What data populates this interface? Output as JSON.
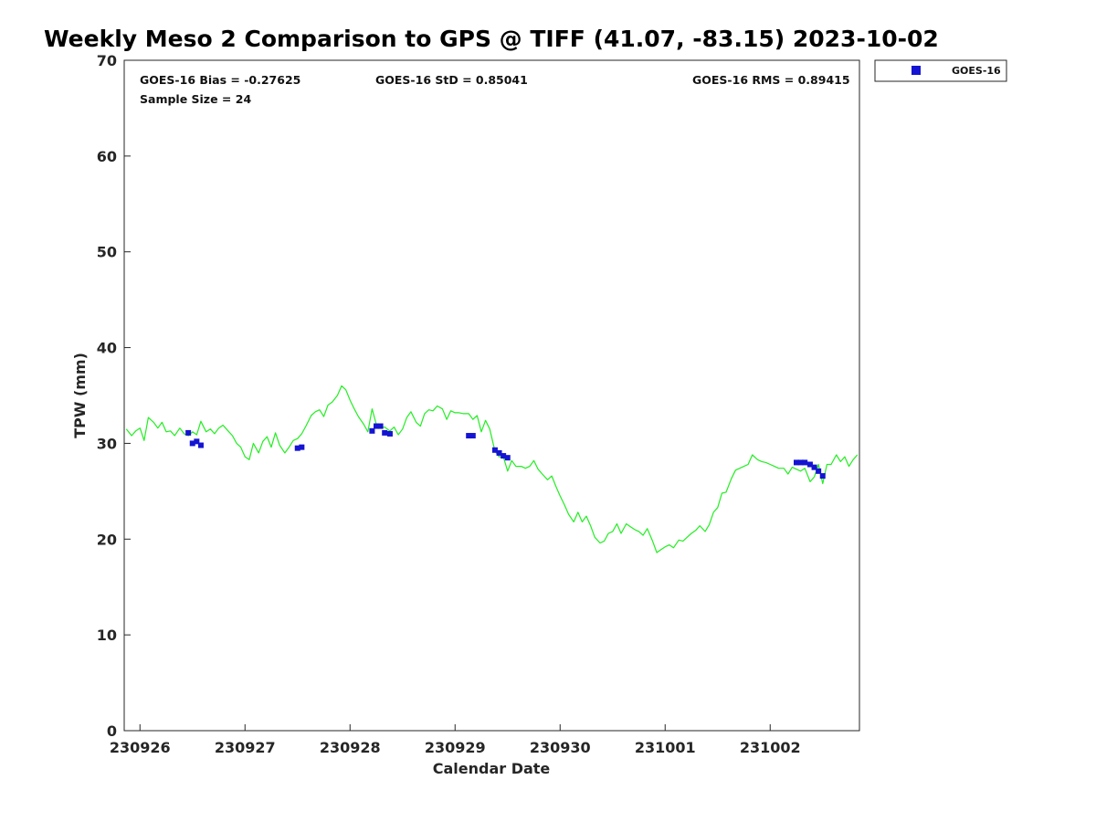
{
  "chart_data": {
    "type": "line",
    "title": "Weekly Meso 2 Comparison to GPS @ TIFF (41.07, -83.15) 2023-10-02",
    "xlabel": "Calendar Date",
    "ylabel": "TPW (mm)",
    "x_unit": "days since 230926",
    "xlim": [
      -0.15,
      6.85
    ],
    "ylim": [
      0,
      70
    ],
    "yticks": [
      0,
      10,
      20,
      30,
      40,
      50,
      60,
      70
    ],
    "xticks": [
      {
        "value": 0,
        "label": "230926"
      },
      {
        "value": 1,
        "label": "230927"
      },
      {
        "value": 2,
        "label": "230928"
      },
      {
        "value": 3,
        "label": "230929"
      },
      {
        "value": 4,
        "label": "230930"
      },
      {
        "value": 5,
        "label": "231001"
      },
      {
        "value": 6,
        "label": "231002"
      }
    ],
    "grid": false,
    "legend_position": "top-right (outside plot)",
    "stats": {
      "bias": "GOES-16 Bias = -0.27625",
      "std": "GOES-16 StD = 0.85041",
      "rms": "GOES-16 RMS = 0.89415",
      "sample": "Sample Size = 24"
    },
    "series": [
      {
        "name": "GPS",
        "kind": "line",
        "color": "#22ee22",
        "points": [
          [
            -0.13,
            31.5
          ],
          [
            -0.08,
            30.8
          ],
          [
            -0.04,
            31.3
          ],
          [
            0.0,
            31.6
          ],
          [
            0.04,
            30.3
          ],
          [
            0.08,
            32.7
          ],
          [
            0.13,
            32.2
          ],
          [
            0.17,
            31.6
          ],
          [
            0.21,
            32.2
          ],
          [
            0.25,
            31.2
          ],
          [
            0.29,
            31.3
          ],
          [
            0.33,
            30.8
          ],
          [
            0.38,
            31.6
          ],
          [
            0.42,
            31.0
          ],
          [
            0.46,
            30.8
          ],
          [
            0.5,
            31.2
          ],
          [
            0.54,
            30.9
          ],
          [
            0.58,
            32.3
          ],
          [
            0.63,
            31.2
          ],
          [
            0.67,
            31.5
          ],
          [
            0.71,
            31.0
          ],
          [
            0.75,
            31.6
          ],
          [
            0.79,
            31.9
          ],
          [
            0.83,
            31.4
          ],
          [
            0.88,
            30.8
          ],
          [
            0.92,
            30.0
          ],
          [
            0.96,
            29.6
          ],
          [
            1.0,
            28.6
          ],
          [
            1.04,
            28.3
          ],
          [
            1.08,
            30.0
          ],
          [
            1.13,
            29.0
          ],
          [
            1.17,
            30.2
          ],
          [
            1.21,
            30.7
          ],
          [
            1.25,
            29.6
          ],
          [
            1.29,
            31.1
          ],
          [
            1.33,
            29.8
          ],
          [
            1.38,
            29.0
          ],
          [
            1.42,
            29.6
          ],
          [
            1.46,
            30.3
          ],
          [
            1.5,
            30.5
          ],
          [
            1.54,
            31.0
          ],
          [
            1.58,
            31.8
          ],
          [
            1.63,
            32.9
          ],
          [
            1.67,
            33.3
          ],
          [
            1.71,
            33.5
          ],
          [
            1.75,
            32.8
          ],
          [
            1.79,
            34.0
          ],
          [
            1.83,
            34.3
          ],
          [
            1.88,
            35.0
          ],
          [
            1.92,
            36.0
          ],
          [
            1.96,
            35.6
          ],
          [
            2.0,
            34.5
          ],
          [
            2.04,
            33.6
          ],
          [
            2.08,
            32.8
          ],
          [
            2.13,
            32.0
          ],
          [
            2.17,
            31.2
          ],
          [
            2.21,
            33.6
          ],
          [
            2.25,
            32.0
          ],
          [
            2.29,
            31.6
          ],
          [
            2.33,
            31.7
          ],
          [
            2.38,
            31.3
          ],
          [
            2.42,
            31.7
          ],
          [
            2.46,
            30.9
          ],
          [
            2.5,
            31.5
          ],
          [
            2.54,
            32.7
          ],
          [
            2.58,
            33.3
          ],
          [
            2.63,
            32.2
          ],
          [
            2.67,
            31.8
          ],
          [
            2.71,
            33.1
          ],
          [
            2.75,
            33.5
          ],
          [
            2.79,
            33.4
          ],
          [
            2.83,
            33.9
          ],
          [
            2.88,
            33.6
          ],
          [
            2.92,
            32.5
          ],
          [
            2.96,
            33.4
          ],
          [
            3.0,
            33.2
          ],
          [
            3.04,
            33.2
          ],
          [
            3.08,
            33.1
          ],
          [
            3.13,
            33.1
          ],
          [
            3.17,
            32.5
          ],
          [
            3.21,
            32.9
          ],
          [
            3.25,
            31.2
          ],
          [
            3.29,
            32.4
          ],
          [
            3.33,
            31.5
          ],
          [
            3.38,
            29.2
          ],
          [
            3.42,
            28.6
          ],
          [
            3.46,
            28.6
          ],
          [
            3.5,
            27.1
          ],
          [
            3.54,
            28.2
          ],
          [
            3.58,
            27.6
          ],
          [
            3.63,
            27.6
          ],
          [
            3.67,
            27.4
          ],
          [
            3.71,
            27.6
          ],
          [
            3.75,
            28.2
          ],
          [
            3.79,
            27.3
          ],
          [
            3.83,
            26.8
          ],
          [
            3.88,
            26.2
          ],
          [
            3.92,
            26.6
          ],
          [
            3.96,
            25.5
          ],
          [
            4.0,
            24.5
          ],
          [
            4.04,
            23.6
          ],
          [
            4.08,
            22.6
          ],
          [
            4.13,
            21.8
          ],
          [
            4.17,
            22.8
          ],
          [
            4.21,
            21.8
          ],
          [
            4.25,
            22.4
          ],
          [
            4.29,
            21.4
          ],
          [
            4.33,
            20.2
          ],
          [
            4.38,
            19.6
          ],
          [
            4.42,
            19.8
          ],
          [
            4.46,
            20.6
          ],
          [
            4.5,
            20.8
          ],
          [
            4.54,
            21.6
          ],
          [
            4.58,
            20.6
          ],
          [
            4.63,
            21.6
          ],
          [
            4.67,
            21.3
          ],
          [
            4.71,
            21.0
          ],
          [
            4.75,
            20.8
          ],
          [
            4.79,
            20.4
          ],
          [
            4.83,
            21.1
          ],
          [
            4.88,
            19.8
          ],
          [
            4.92,
            18.6
          ],
          [
            4.96,
            18.9
          ],
          [
            5.0,
            19.2
          ],
          [
            5.04,
            19.4
          ],
          [
            5.08,
            19.1
          ],
          [
            5.13,
            19.9
          ],
          [
            5.17,
            19.8
          ],
          [
            5.21,
            20.2
          ],
          [
            5.25,
            20.6
          ],
          [
            5.29,
            20.9
          ],
          [
            5.33,
            21.4
          ],
          [
            5.38,
            20.8
          ],
          [
            5.42,
            21.5
          ],
          [
            5.46,
            22.8
          ],
          [
            5.5,
            23.3
          ],
          [
            5.54,
            24.8
          ],
          [
            5.58,
            24.9
          ],
          [
            5.63,
            26.3
          ],
          [
            5.67,
            27.2
          ],
          [
            5.71,
            27.4
          ],
          [
            5.75,
            27.6
          ],
          [
            5.79,
            27.8
          ],
          [
            5.83,
            28.8
          ],
          [
            5.88,
            28.3
          ],
          [
            5.92,
            28.1
          ],
          [
            5.96,
            28.0
          ],
          [
            6.0,
            27.8
          ],
          [
            6.04,
            27.6
          ],
          [
            6.08,
            27.4
          ],
          [
            6.13,
            27.4
          ],
          [
            6.17,
            26.8
          ],
          [
            6.21,
            27.5
          ],
          [
            6.25,
            27.3
          ],
          [
            6.29,
            27.1
          ],
          [
            6.33,
            27.4
          ],
          [
            6.38,
            26.0
          ],
          [
            6.42,
            26.5
          ],
          [
            6.46,
            27.8
          ],
          [
            6.5,
            25.8
          ],
          [
            6.54,
            27.8
          ],
          [
            6.58,
            27.8
          ],
          [
            6.63,
            28.8
          ],
          [
            6.67,
            28.1
          ],
          [
            6.71,
            28.6
          ],
          [
            6.75,
            27.6
          ],
          [
            6.79,
            28.3
          ],
          [
            6.83,
            28.8
          ]
        ]
      },
      {
        "name": "GOES-16",
        "kind": "scatter",
        "marker": "square",
        "color": "#1414d2",
        "points": [
          [
            0.46,
            31.1
          ],
          [
            0.5,
            30.0
          ],
          [
            0.54,
            30.2
          ],
          [
            0.58,
            29.8
          ],
          [
            1.5,
            29.5
          ],
          [
            1.54,
            29.6
          ],
          [
            2.21,
            31.3
          ],
          [
            2.25,
            31.8
          ],
          [
            2.29,
            31.8
          ],
          [
            2.33,
            31.1
          ],
          [
            2.38,
            31.0
          ],
          [
            3.13,
            30.8
          ],
          [
            3.17,
            30.8
          ],
          [
            3.38,
            29.3
          ],
          [
            3.42,
            29.0
          ],
          [
            3.46,
            28.7
          ],
          [
            3.5,
            28.5
          ],
          [
            6.25,
            28.0
          ],
          [
            6.29,
            28.0
          ],
          [
            6.33,
            28.0
          ],
          [
            6.38,
            27.8
          ],
          [
            6.42,
            27.5
          ],
          [
            6.46,
            27.1
          ],
          [
            6.5,
            26.6
          ]
        ]
      }
    ],
    "legend": {
      "label": "GOES-16",
      "color": "#1414d2"
    }
  }
}
